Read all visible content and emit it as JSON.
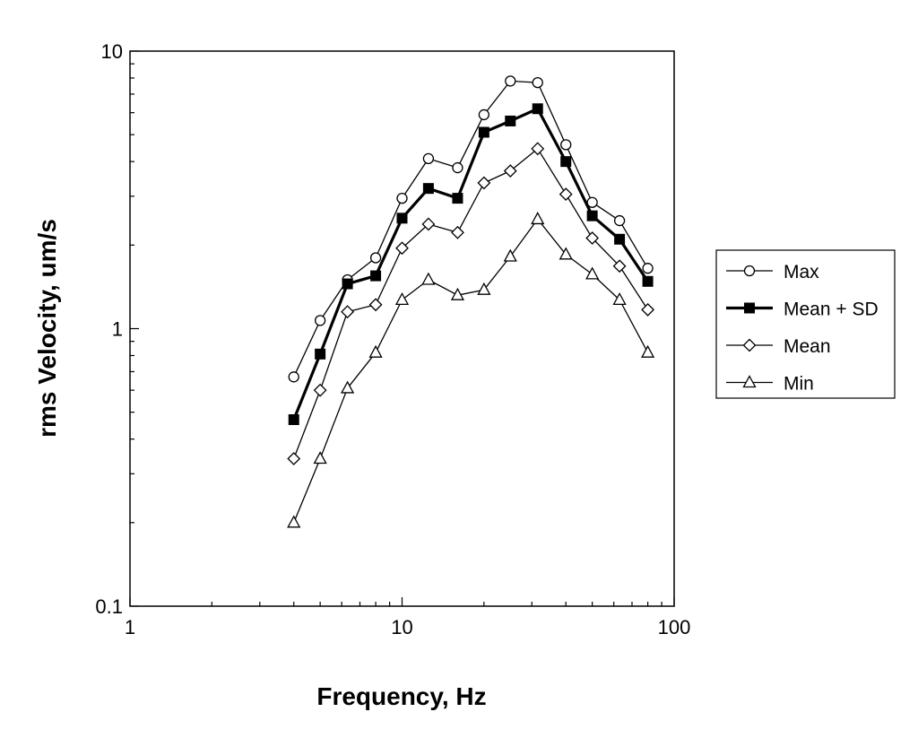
{
  "chart_data": {
    "type": "line",
    "xlabel": "Frequency, Hz",
    "ylabel": "rms Velocity, um/s",
    "xscale": "log",
    "yscale": "log",
    "xlim": [
      1,
      100
    ],
    "ylim": [
      0.1,
      10
    ],
    "x_tick_labels": [
      "1",
      "10",
      "100"
    ],
    "y_tick_labels": [
      "0.1",
      "1",
      "10"
    ],
    "grid": false,
    "legend_position": "right",
    "x": [
      4,
      5,
      6.3,
      8,
      10,
      12.5,
      16,
      20,
      25,
      31.5,
      40,
      50,
      63,
      80
    ],
    "series": [
      {
        "name": "Max",
        "marker": "open-circle",
        "line": "thin",
        "values": [
          0.67,
          1.07,
          1.5,
          1.8,
          2.95,
          4.1,
          3.8,
          5.9,
          7.8,
          7.7,
          4.6,
          2.85,
          2.45,
          1.65
        ]
      },
      {
        "name": "Mean + SD",
        "marker": "filled-square",
        "line": "thick",
        "values": [
          0.47,
          0.81,
          1.45,
          1.55,
          2.5,
          3.2,
          2.95,
          5.1,
          5.6,
          6.2,
          4.0,
          2.55,
          2.1,
          1.48
        ]
      },
      {
        "name": "Mean",
        "marker": "open-diamond",
        "line": "thin",
        "values": [
          0.34,
          0.6,
          1.15,
          1.22,
          1.95,
          2.38,
          2.22,
          3.35,
          3.7,
          4.45,
          3.05,
          2.12,
          1.68,
          1.17
        ]
      },
      {
        "name": "Min",
        "marker": "open-triangle",
        "line": "thin",
        "values": [
          0.2,
          0.34,
          0.61,
          0.82,
          1.27,
          1.5,
          1.32,
          1.38,
          1.82,
          2.48,
          1.85,
          1.57,
          1.27,
          0.82
        ]
      }
    ]
  }
}
